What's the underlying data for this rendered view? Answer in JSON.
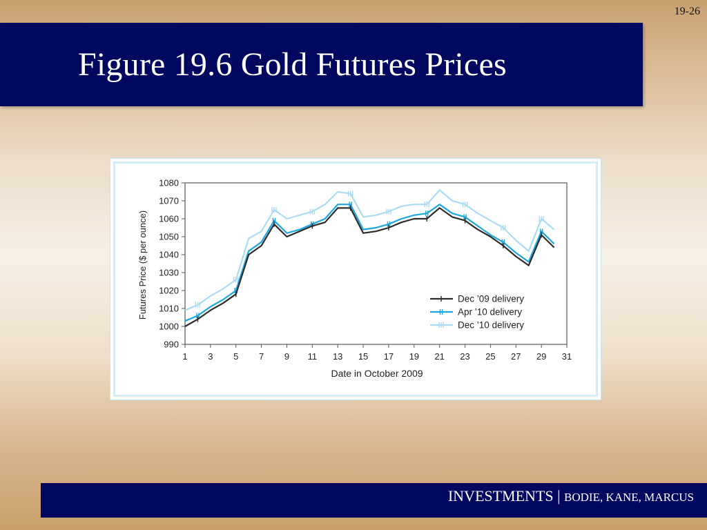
{
  "slide": {
    "number": "19-26",
    "title": "Figure 19.6 Gold Futures Prices"
  },
  "footer": {
    "brand": "INVESTMENTS",
    "separator": " | ",
    "authors": "BODIE, KANE, MARCUS"
  },
  "colors": {
    "title_bar": "#00075e",
    "dec09": "#2b2b2b",
    "apr10": "#1aa6e0",
    "dec10": "#a9dcf4"
  },
  "chart_data": {
    "type": "line",
    "xlabel": "Date in October 2009",
    "ylabel": "Futures Price ($ per ounce)",
    "xlim": [
      1,
      31
    ],
    "ylim": [
      990,
      1080
    ],
    "xticks": [
      1,
      3,
      5,
      7,
      9,
      11,
      13,
      15,
      17,
      19,
      21,
      23,
      25,
      27,
      29,
      31
    ],
    "yticks": [
      990,
      1000,
      1010,
      1020,
      1030,
      1040,
      1050,
      1060,
      1070,
      1080
    ],
    "legend_position": "bottom-right",
    "x": [
      1,
      2,
      3,
      4,
      5,
      6,
      7,
      8,
      9,
      10,
      11,
      12,
      13,
      14,
      15,
      16,
      17,
      18,
      19,
      20,
      21,
      22,
      23,
      24,
      25,
      26,
      27,
      28,
      29,
      30
    ],
    "series": [
      {
        "name": "Dec ’09 delivery",
        "color": "#2b2b2b",
        "tick": "|",
        "values": [
          1000,
          1004,
          1009,
          1013,
          1018,
          1040,
          1045,
          1057,
          1050,
          1053,
          1056,
          1058,
          1066,
          1066,
          1052,
          1053,
          1055,
          1058,
          1060,
          1060,
          1066,
          1061,
          1059,
          1054,
          1050,
          1045,
          1039,
          1034,
          1051,
          1044
        ]
      },
      {
        "name": "Apr ’10 delivery",
        "color": "#1aa6e0",
        "tick": "||",
        "values": [
          1003,
          1006,
          1011,
          1015,
          1020,
          1042,
          1047,
          1059,
          1052,
          1054,
          1057,
          1060,
          1068,
          1068,
          1054,
          1055,
          1057,
          1060,
          1062,
          1063,
          1068,
          1063,
          1061,
          1056,
          1051,
          1047,
          1041,
          1036,
          1053,
          1046
        ]
      },
      {
        "name": "Dec ’10 delivery",
        "color": "#a9dcf4",
        "tick": "|||",
        "values": [
          1009,
          1012,
          1017,
          1021,
          1026,
          1049,
          1053,
          1065,
          1060,
          1062,
          1064,
          1068,
          1075,
          1074,
          1061,
          1062,
          1064,
          1067,
          1068,
          1068,
          1076,
          1070,
          1068,
          1063,
          1059,
          1055,
          1048,
          1042,
          1060,
          1054
        ]
      }
    ]
  }
}
